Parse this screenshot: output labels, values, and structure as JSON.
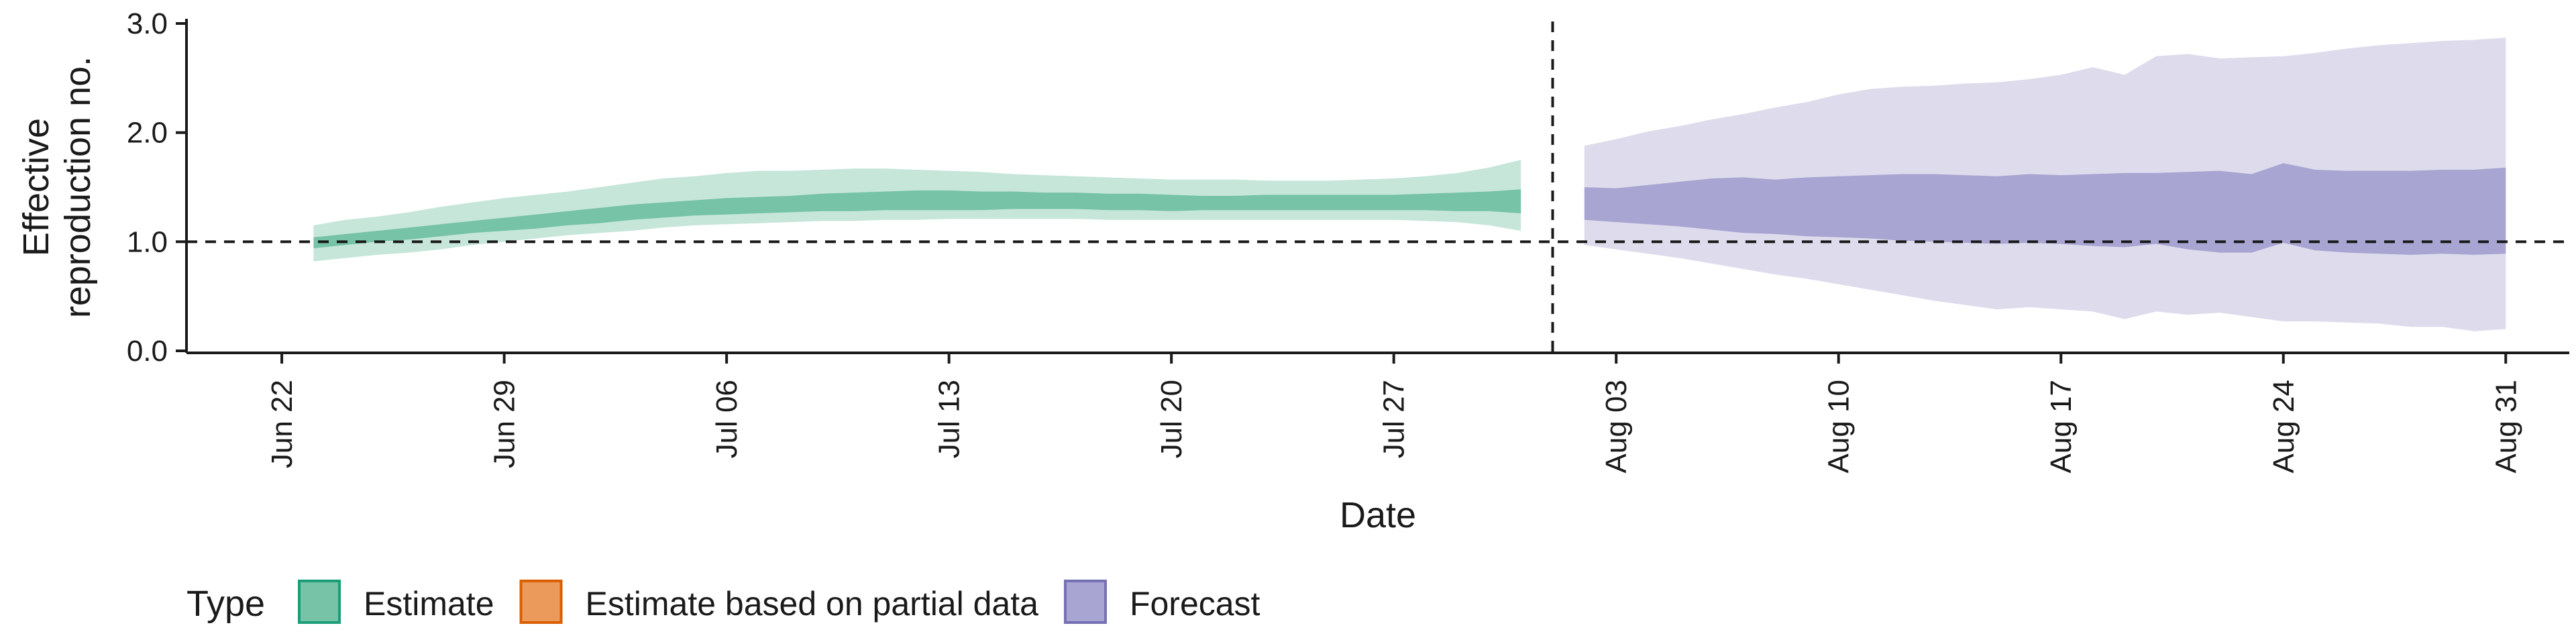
{
  "chart_data": {
    "type": "area",
    "title": "",
    "xlabel": "Date",
    "ylabel_lines": [
      "Effective",
      "reproduction no."
    ],
    "y_ticks": [
      "0.0",
      "1.0",
      "2.0",
      "3.0"
    ],
    "ylim": [
      0,
      3
    ],
    "x_range": [
      "2020-06-19",
      "2020-09-02"
    ],
    "x_ticks": [
      {
        "date": "2020-06-22",
        "label": "Jun 22"
      },
      {
        "date": "2020-06-29",
        "label": "Jun 29"
      },
      {
        "date": "2020-07-06",
        "label": "Jul 06"
      },
      {
        "date": "2020-07-13",
        "label": "Jul 13"
      },
      {
        "date": "2020-07-20",
        "label": "Jul 20"
      },
      {
        "date": "2020-07-27",
        "label": "Jul 27"
      },
      {
        "date": "2020-08-03",
        "label": "Aug 03"
      },
      {
        "date": "2020-08-10",
        "label": "Aug 10"
      },
      {
        "date": "2020-08-17",
        "label": "Aug 17"
      },
      {
        "date": "2020-08-24",
        "label": "Aug 24"
      },
      {
        "date": "2020-08-31",
        "label": "Aug 31"
      }
    ],
    "reference_line_y": 1.0,
    "reference_line_date": "2020-08-01",
    "grid": false,
    "legend": {
      "title": "Type",
      "placement": "bottom",
      "items": [
        {
          "label": "Estimate",
          "fill": "#76c3a7",
          "stroke": "#1b9e77"
        },
        {
          "label": "Estimate based on partial data",
          "fill": "#ec9a5b",
          "stroke": "#d95f02"
        },
        {
          "label": "Forecast",
          "fill": "#a9a5d3",
          "stroke": "#7570b3"
        }
      ]
    },
    "series": [
      {
        "name": "Estimate",
        "color_outer": "#c6e6da",
        "color_inner": "#76c3a7",
        "dates": [
          "2020-06-23",
          "2020-06-24",
          "2020-06-25",
          "2020-06-26",
          "2020-06-27",
          "2020-06-28",
          "2020-06-29",
          "2020-06-30",
          "2020-07-01",
          "2020-07-02",
          "2020-07-03",
          "2020-07-04",
          "2020-07-05",
          "2020-07-06",
          "2020-07-07",
          "2020-07-08",
          "2020-07-09",
          "2020-07-10",
          "2020-07-11",
          "2020-07-12",
          "2020-07-13",
          "2020-07-14",
          "2020-07-15",
          "2020-07-16",
          "2020-07-17",
          "2020-07-18",
          "2020-07-19",
          "2020-07-20",
          "2020-07-21",
          "2020-07-22",
          "2020-07-23",
          "2020-07-24",
          "2020-07-25",
          "2020-07-26",
          "2020-07-27",
          "2020-07-28",
          "2020-07-29",
          "2020-07-30",
          "2020-07-31"
        ],
        "outer_lower": [
          0.82,
          0.85,
          0.88,
          0.9,
          0.93,
          0.97,
          1.0,
          1.03,
          1.06,
          1.08,
          1.1,
          1.13,
          1.15,
          1.16,
          1.17,
          1.18,
          1.19,
          1.19,
          1.2,
          1.2,
          1.21,
          1.21,
          1.21,
          1.21,
          1.21,
          1.2,
          1.2,
          1.2,
          1.2,
          1.2,
          1.2,
          1.2,
          1.2,
          1.2,
          1.2,
          1.19,
          1.18,
          1.15,
          1.1
        ],
        "outer_upper": [
          1.15,
          1.2,
          1.23,
          1.27,
          1.32,
          1.36,
          1.4,
          1.43,
          1.46,
          1.5,
          1.54,
          1.58,
          1.6,
          1.63,
          1.65,
          1.65,
          1.66,
          1.67,
          1.67,
          1.66,
          1.65,
          1.64,
          1.62,
          1.61,
          1.6,
          1.59,
          1.58,
          1.57,
          1.57,
          1.57,
          1.56,
          1.56,
          1.56,
          1.57,
          1.58,
          1.6,
          1.63,
          1.68,
          1.75
        ],
        "inner_lower": [
          0.94,
          0.97,
          1.0,
          1.02,
          1.05,
          1.08,
          1.1,
          1.12,
          1.15,
          1.17,
          1.2,
          1.22,
          1.24,
          1.25,
          1.26,
          1.27,
          1.28,
          1.28,
          1.29,
          1.29,
          1.29,
          1.29,
          1.3,
          1.3,
          1.3,
          1.29,
          1.29,
          1.28,
          1.29,
          1.29,
          1.29,
          1.29,
          1.29,
          1.29,
          1.29,
          1.29,
          1.28,
          1.28,
          1.26
        ],
        "inner_upper": [
          1.04,
          1.07,
          1.1,
          1.13,
          1.16,
          1.19,
          1.22,
          1.25,
          1.28,
          1.31,
          1.34,
          1.36,
          1.38,
          1.4,
          1.41,
          1.42,
          1.44,
          1.45,
          1.46,
          1.47,
          1.47,
          1.46,
          1.46,
          1.45,
          1.45,
          1.44,
          1.44,
          1.43,
          1.42,
          1.42,
          1.43,
          1.43,
          1.43,
          1.43,
          1.43,
          1.44,
          1.45,
          1.46,
          1.48
        ]
      },
      {
        "name": "Forecast",
        "color_outer": "#dedcec",
        "color_inner": "#a9a5d3",
        "dates": [
          "2020-08-02",
          "2020-08-03",
          "2020-08-04",
          "2020-08-05",
          "2020-08-06",
          "2020-08-07",
          "2020-08-08",
          "2020-08-09",
          "2020-08-10",
          "2020-08-11",
          "2020-08-12",
          "2020-08-13",
          "2020-08-14",
          "2020-08-15",
          "2020-08-16",
          "2020-08-17",
          "2020-08-18",
          "2020-08-19",
          "2020-08-20",
          "2020-08-21",
          "2020-08-22",
          "2020-08-23",
          "2020-08-24",
          "2020-08-25",
          "2020-08-26",
          "2020-08-27",
          "2020-08-28",
          "2020-08-29",
          "2020-08-30",
          "2020-08-31"
        ],
        "outer_lower": [
          0.97,
          0.93,
          0.89,
          0.85,
          0.8,
          0.75,
          0.7,
          0.66,
          0.61,
          0.56,
          0.51,
          0.46,
          0.42,
          0.38,
          0.4,
          0.38,
          0.36,
          0.29,
          0.36,
          0.33,
          0.35,
          0.31,
          0.27,
          0.27,
          0.26,
          0.25,
          0.22,
          0.22,
          0.18,
          0.2
        ],
        "outer_upper": [
          1.88,
          1.94,
          2.01,
          2.06,
          2.12,
          2.17,
          2.23,
          2.28,
          2.35,
          2.4,
          2.42,
          2.43,
          2.45,
          2.46,
          2.49,
          2.53,
          2.6,
          2.53,
          2.7,
          2.72,
          2.68,
          2.69,
          2.7,
          2.73,
          2.77,
          2.8,
          2.82,
          2.84,
          2.85,
          2.87
        ],
        "inner_lower": [
          1.2,
          1.18,
          1.16,
          1.14,
          1.11,
          1.08,
          1.07,
          1.05,
          1.04,
          1.03,
          1.01,
          1.0,
          0.99,
          0.98,
          0.99,
          0.98,
          0.96,
          0.95,
          0.98,
          0.93,
          0.9,
          0.9,
          0.99,
          0.92,
          0.9,
          0.89,
          0.88,
          0.89,
          0.88,
          0.89
        ],
        "inner_upper": [
          1.5,
          1.49,
          1.52,
          1.55,
          1.58,
          1.59,
          1.57,
          1.59,
          1.6,
          1.61,
          1.62,
          1.62,
          1.61,
          1.6,
          1.62,
          1.61,
          1.62,
          1.63,
          1.63,
          1.64,
          1.65,
          1.62,
          1.72,
          1.66,
          1.65,
          1.65,
          1.65,
          1.66,
          1.66,
          1.68
        ]
      }
    ]
  }
}
